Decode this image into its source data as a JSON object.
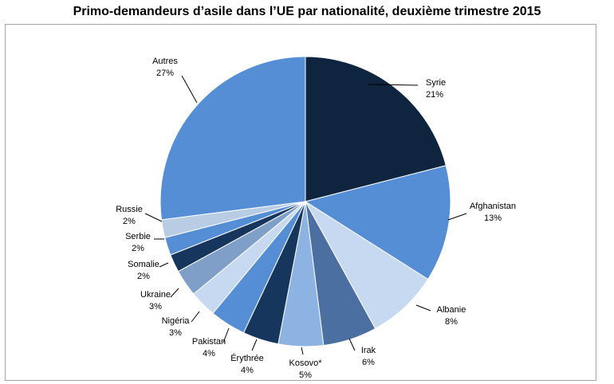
{
  "chart_data": {
    "type": "pie",
    "title": "Primo-demandeurs d’asile dans l’UE par nationalité, deuxième trimestre 2015",
    "slices": [
      {
        "label": "Syrie",
        "value": 21,
        "display": "21%",
        "color": "#0f243e"
      },
      {
        "label": "Afghanistan",
        "value": 13,
        "display": "13%",
        "color": "#558ed5"
      },
      {
        "label": "Albanie",
        "value": 8,
        "display": "8%",
        "color": "#c6d9f1"
      },
      {
        "label": "Irak",
        "value": 6,
        "display": "6%",
        "color": "#4a6fa0"
      },
      {
        "label": "Kosovo*",
        "value": 5,
        "display": "5%",
        "color": "#8db3e2"
      },
      {
        "label": "Érythrée",
        "value": 4,
        "display": "4%",
        "color": "#17365d"
      },
      {
        "label": "Pakistan",
        "value": 4,
        "display": "4%",
        "color": "#558ed5"
      },
      {
        "label": "Nigéria",
        "value": 3,
        "display": "3%",
        "color": "#c6d9f1"
      },
      {
        "label": "Ukraine",
        "value": 3,
        "display": "3%",
        "color": "#7f9fc9"
      },
      {
        "label": "Somalie",
        "value": 2,
        "display": "2%",
        "color": "#17365d"
      },
      {
        "label": "Serbie",
        "value": 2,
        "display": "2%",
        "color": "#558ed5"
      },
      {
        "label": "Russie",
        "value": 2,
        "display": "2%",
        "color": "#b8cce4"
      },
      {
        "label": "Autres",
        "value": 27,
        "display": "27%",
        "color": "#558ed5"
      }
    ],
    "legend": "none"
  }
}
